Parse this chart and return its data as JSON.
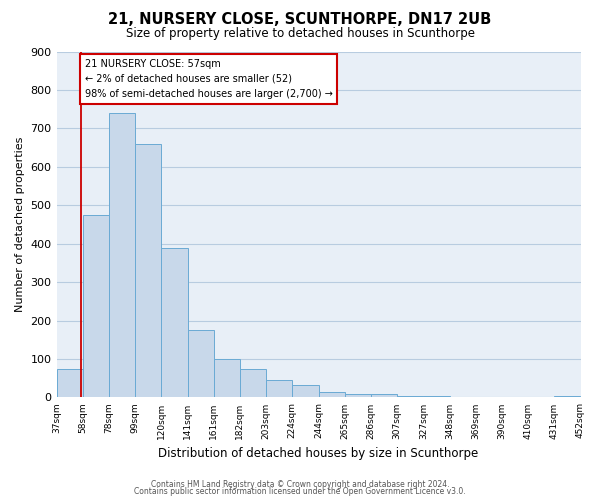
{
  "title": "21, NURSERY CLOSE, SCUNTHORPE, DN17 2UB",
  "subtitle": "Size of property relative to detached houses in Scunthorpe",
  "xlabel": "Distribution of detached houses by size in Scunthorpe",
  "ylabel": "Number of detached properties",
  "bar_color": "#c8d8ea",
  "bar_edge_color": "#6aaad4",
  "background_color": "#ffffff",
  "plot_bg_color": "#e8eff7",
  "grid_color": "#b8cce0",
  "annotation_line_color": "#cc0000",
  "annotation_box_color": "#cc0000",
  "annotation_text_line1": "21 NURSERY CLOSE: 57sqm",
  "annotation_text_line2": "← 2% of detached houses are smaller (52)",
  "annotation_text_line3": "98% of semi-detached houses are larger (2,700) →",
  "property_size": 57,
  "bin_edges": [
    37,
    58,
    78,
    99,
    120,
    141,
    161,
    182,
    203,
    224,
    244,
    265,
    286,
    307,
    327,
    348,
    369,
    390,
    410,
    431,
    452
  ],
  "counts": [
    75,
    475,
    740,
    660,
    390,
    175,
    100,
    75,
    45,
    33,
    15,
    10,
    8,
    5,
    3,
    2,
    1,
    0,
    0,
    5
  ],
  "ylim": [
    0,
    900
  ],
  "yticks": [
    0,
    100,
    200,
    300,
    400,
    500,
    600,
    700,
    800,
    900
  ],
  "footer_line1": "Contains HM Land Registry data © Crown copyright and database right 2024.",
  "footer_line2": "Contains public sector information licensed under the Open Government Licence v3.0."
}
